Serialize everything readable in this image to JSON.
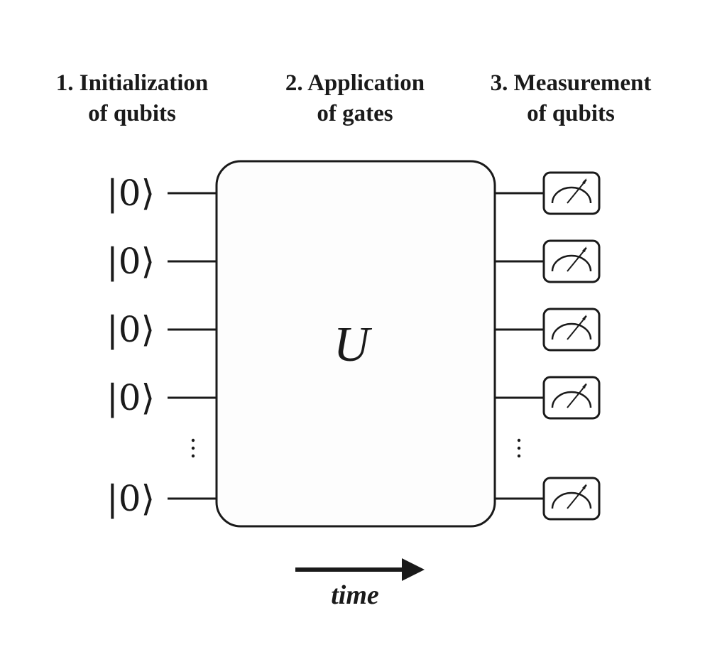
{
  "stages": [
    {
      "line1": "1. Initialization",
      "line2": "of qubits"
    },
    {
      "line1": "2. Application",
      "line2": "of gates"
    },
    {
      "line1": "3. Measurement",
      "line2": "of qubits"
    }
  ],
  "qubit_state_label": "|0⟩",
  "gate_label": "U",
  "time_label": "time",
  "visible_qubit_count": 5,
  "has_ellipsis": true
}
